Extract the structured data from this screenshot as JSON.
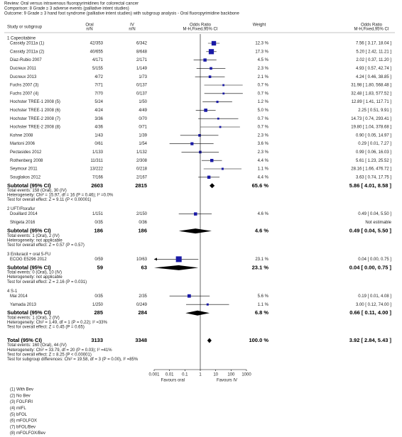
{
  "header": {
    "review": "Review:   Oral versus intravenous fluoropyrimidines for colorectal cancer",
    "comparison": "Comparison:   8 Grade ≥ 3 adverse events (palliative intent studies)",
    "outcome": "Outcome:   9 Grade ≥ 3 hand foot syndrome (palliative intent studies) with subgroup analysis - Oral fluoropyrimidine backbone"
  },
  "columns": {
    "study": "Study or subgroup",
    "oral": [
      "Oral",
      "n/N"
    ],
    "iv": [
      "IV",
      "n/N"
    ],
    "or_plot": [
      "Odds Ratio",
      "M-H,Fixed,95% CI"
    ],
    "weight": "Weight",
    "or_text": [
      "Odds Ratio",
      "M-H,Fixed,95% CI"
    ]
  },
  "subgroups": [
    {
      "title": "1 Capecitabine",
      "studies": [
        {
          "name": "Cassidy 2011a (1)",
          "oral": "42/353",
          "iv": "6/342",
          "weight": 12.3,
          "weight_label": "12.3 %",
          "or": 7.56,
          "lo": 3.17,
          "hi": 18.04,
          "or_label": "7.56 [ 3.17, 18.04 ]"
        },
        {
          "name": "Cassidy 2011a (2)",
          "oral": "40/655",
          "iv": "8/648",
          "weight": 17.3,
          "weight_label": "17.3 %",
          "or": 5.2,
          "lo": 2.42,
          "hi": 11.21,
          "or_label": "5.20 [ 2.42, 11.21 ]"
        },
        {
          "name": "Diaz-Rubio 2007",
          "oral": "4/171",
          "iv": "2/171",
          "weight": 4.5,
          "weight_label": "4.5 %",
          "or": 2.02,
          "lo": 0.37,
          "hi": 11.2,
          "or_label": "2.02 [ 0.37, 11.20 ]"
        },
        {
          "name": "Ducreux 2011",
          "oral": "5/155",
          "iv": "1/149",
          "weight": 2.3,
          "weight_label": "2.3 %",
          "or": 4.93,
          "lo": 0.57,
          "hi": 42.74,
          "or_label": "4.93 [ 0.57, 42.74 ]"
        },
        {
          "name": "Ducreux 2013",
          "oral": "4/72",
          "iv": "1/73",
          "weight": 2.1,
          "weight_label": "2.1 %",
          "or": 4.24,
          "lo": 0.46,
          "hi": 38.85,
          "or_label": "4.24 [ 0.46, 38.85 ]"
        },
        {
          "name": "Fuchs 2007 (3)",
          "oral": "7/71",
          "iv": "0/137",
          "weight": 0.7,
          "weight_label": "0.7 %",
          "or": 31.98,
          "lo": 1.8,
          "hi": 568.48,
          "or_label": "31.98 [ 1.80, 568.48 ]"
        },
        {
          "name": "Fuchs 2007 (4)",
          "oral": "7/70",
          "iv": "0/137",
          "weight": 0.7,
          "weight_label": "0.7 %",
          "or": 32.48,
          "lo": 1.83,
          "hi": 577.52,
          "or_label": "32.48 [ 1.83, 577.52 ]"
        },
        {
          "name": "Hochster TREE-1 2008 (5)",
          "oral": "5/24",
          "iv": "1/50",
          "weight": 1.2,
          "weight_label": "1.2 %",
          "or": 12.89,
          "lo": 1.41,
          "hi": 117.71,
          "or_label": "12.89 [ 1.41, 117.71 ]"
        },
        {
          "name": "Hochster TREE-1 2008 (6)",
          "oral": "4/24",
          "iv": "4/49",
          "weight": 5.0,
          "weight_label": "5.0 %",
          "or": 2.25,
          "lo": 0.51,
          "hi": 9.91,
          "or_label": "2.25 [ 0.51, 9.91 ]"
        },
        {
          "name": "Hochster TREE-2 2008 (7)",
          "oral": "3/36",
          "iv": "0/70",
          "weight": 0.7,
          "weight_label": "0.7 %",
          "or": 14.73,
          "lo": 0.74,
          "hi": 293.41,
          "or_label": "14.73 [ 0.74, 293.41 ]"
        },
        {
          "name": "Hochster TREE-2 2008 (8)",
          "oral": "4/36",
          "iv": "0/71",
          "weight": 0.7,
          "weight_label": "0.7 %",
          "or": 19.8,
          "lo": 1.04,
          "hi": 378.68,
          "or_label": "19.80 [ 1.04, 378.68 ]"
        },
        {
          "name": "Kohne 2008",
          "oral": "1/43",
          "iv": "1/39",
          "weight": 2.3,
          "weight_label": "2.3 %",
          "or": 0.9,
          "lo": 0.05,
          "hi": 14.97,
          "or_label": "0.90 [ 0.05, 14.97 ]"
        },
        {
          "name": "Martoni 2006",
          "oral": "0/61",
          "iv": "1/54",
          "weight": 3.6,
          "weight_label": "3.6 %",
          "or": 0.29,
          "lo": 0.01,
          "hi": 7.27,
          "or_label": "0.29 [ 0.01, 7.27 ]"
        },
        {
          "name": "Pectasides 2012",
          "oral": "1/133",
          "iv": "1/132",
          "weight": 2.3,
          "weight_label": "2.3 %",
          "or": 0.99,
          "lo": 0.06,
          "hi": 16.03,
          "or_label": "0.99 [ 0.06, 16.03 ]"
        },
        {
          "name": "Rothenberg 2008",
          "oral": "11/311",
          "iv": "2/308",
          "weight": 4.4,
          "weight_label": "4.4 %",
          "or": 5.61,
          "lo": 1.23,
          "hi": 25.52,
          "or_label": "5.61 [ 1.23, 25.52 ]"
        },
        {
          "name": "Seymour 2011",
          "oral": "13/222",
          "iv": "0/218",
          "weight": 1.1,
          "weight_label": "1.1 %",
          "or": 28.16,
          "lo": 1.66,
          "hi": 476.72,
          "or_label": "28.16 [ 1.66, 476.72 ]"
        },
        {
          "name": "Souglakos 2012",
          "oral": "7/166",
          "iv": "2/167",
          "weight": 4.4,
          "weight_label": "4.4 %",
          "or": 3.63,
          "lo": 0.74,
          "hi": 17.75,
          "or_label": "3.63 [ 0.74, 17.75 ]"
        }
      ],
      "subtotal": {
        "label": "Subtotal (95% CI)",
        "oral": 2603,
        "iv": 2815,
        "weight": 65.6,
        "weight_label": "65.6 %",
        "or": 5.86,
        "lo": 4.01,
        "hi": 8.58,
        "or_label": "5.86 [ 4.01, 8.58 ]"
      },
      "notes": [
        "Total events: 158 (Oral), 30 (IV)",
        "Heterogeneity: Chi² = 15.97, df = 16 (P = 0.46); I² =0.0%",
        "Test for overall effect: Z = 9.11 (P < 0.00001)"
      ]
    },
    {
      "title": "2 UFT/Ftorafur",
      "studies": [
        {
          "name": "Douillard 2014",
          "oral": "1/151",
          "iv": "2/150",
          "weight": 4.6,
          "weight_label": "4.6 %",
          "or": 0.49,
          "lo": 0.04,
          "hi": 5.5,
          "or_label": "0.49 [ 0.04, 5.50 ]"
        },
        {
          "name": "Shigeta 2016",
          "oral": "0/35",
          "iv": "0/36",
          "or_label": "Not estimable"
        }
      ],
      "subtotal": {
        "label": "Subtotal (95% CI)",
        "oral": 186,
        "iv": 186,
        "weight": 4.6,
        "weight_label": "4.6 %",
        "or": 0.49,
        "lo": 0.04,
        "hi": 5.5,
        "or_label": "0.49 [ 0.04, 5.50 ]"
      },
      "notes": [
        "Total events: 1 (Oral), 2 (IV)",
        "Heterogeneity: not applicable",
        "Test for overall effect: Z = 0.57 (P = 0.57)"
      ]
    },
    {
      "title": "3 Eniluracil + oral 5-FU",
      "studies": [
        {
          "name": "ECOG E5296 2012",
          "oral": "0/59",
          "iv": "10/63",
          "weight": 23.1,
          "weight_label": "23.1 %",
          "or": 0.04,
          "lo": 0.0,
          "hi": 0.75,
          "or_label": "0.04 [ 0.00, 0.75 ]"
        }
      ],
      "subtotal": {
        "label": "Subtotal (95% CI)",
        "oral": 59,
        "iv": 63,
        "weight": 23.1,
        "weight_label": "23.1 %",
        "or": 0.04,
        "lo": 0.0,
        "hi": 0.75,
        "or_label": "0.04 [ 0.00, 0.75 ]"
      },
      "notes": [
        "Total events: 0 (Oral), 10 (IV)",
        "Heterogeneity: not applicable",
        "Test for overall effect: Z = 2.16 (P = 0.031)"
      ]
    },
    {
      "title": "4 S-1",
      "studies": [
        {
          "name": "Mai 2014",
          "oral": "0/35",
          "iv": "2/35",
          "weight": 5.6,
          "weight_label": "5.6 %",
          "or": 0.19,
          "lo": 0.01,
          "hi": 4.08,
          "or_label": "0.19 [ 0.01, 4.08 ]"
        },
        {
          "name": "Yamada 2013",
          "oral": "1/250",
          "iv": "0/249",
          "weight": 1.1,
          "weight_label": "1.1 %",
          "or": 3.0,
          "lo": 0.12,
          "hi": 74.0,
          "or_label": "3.00 [ 0.12, 74.00 ]"
        }
      ],
      "subtotal": {
        "label": "Subtotal (95% CI)",
        "oral": 285,
        "iv": 284,
        "weight": 6.8,
        "weight_label": "6.8 %",
        "or": 0.66,
        "lo": 0.11,
        "hi": 4.0,
        "or_label": "0.66 [ 0.11, 4.00 ]"
      },
      "notes": [
        "Total events: 1 (Oral), 2 (IV)",
        "Heterogeneity: Chi² = 1.49, df = 1 (P = 0.22); I² =33%",
        "Test for overall effect: Z = 0.45 (P = 0.65)"
      ]
    }
  ],
  "total": {
    "label": "Total (95% CI)",
    "oral": 3133,
    "iv": 3348,
    "weight": 100.0,
    "weight_label": "100.0 %",
    "or": 3.92,
    "lo": 2.84,
    "hi": 5.43,
    "or_label": "3.92 [ 2.84, 5.43 ]",
    "notes": [
      "Total events: 160 (Oral), 44 (IV)",
      "Heterogeneity: Chi² = 33.79, df = 20 (P = 0.03); I² =41%",
      "Test for overall effect: Z = 8.25 (P < 0.00001)",
      "Test for subgroup differences: Chi² = 19.58, df = 3 (P = 0.00), I² =85%"
    ]
  },
  "axis": {
    "xlim": [
      0.001,
      1000
    ],
    "xticks": [
      0.001,
      0.01,
      0.1,
      1,
      10,
      100,
      1000
    ],
    "favours_left": "Favours oral",
    "favours_right": "Favours IV"
  },
  "footnotes": [
    "(1) With Bev",
    "(2) No Bev",
    "(3) FOLFIRI",
    "(4) mIFL",
    "(5) bFOL",
    "(6) mFOLFOX",
    "(7) bFOL/Bev",
    "(8) mFOLFOX/Bev"
  ]
}
